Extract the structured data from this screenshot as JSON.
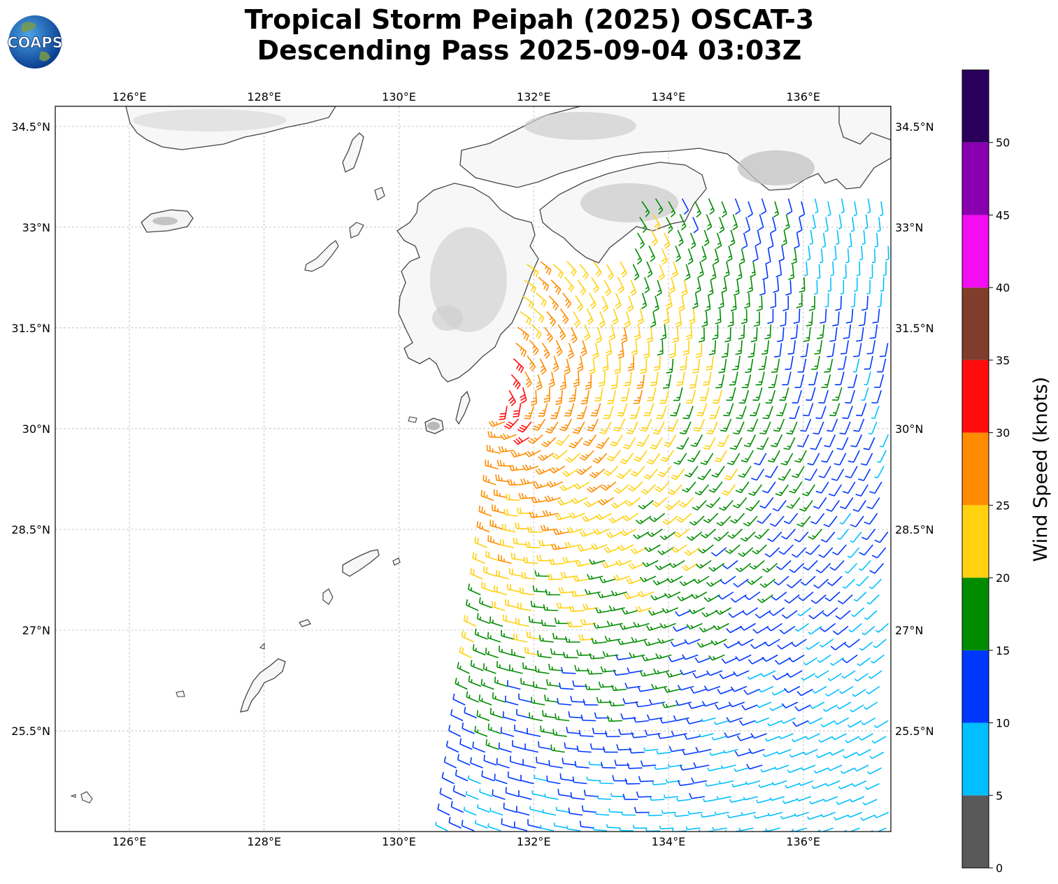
{
  "title": {
    "line1": "Tropical Storm Peipah (2025) OSCAT-3",
    "line2": "Descending Pass 2025-09-04 03:03Z"
  },
  "logo": {
    "text": "COAPS",
    "icon": "globe-icon"
  },
  "map": {
    "lon_range": [
      124.9,
      137.3
    ],
    "lat_range": [
      24.0,
      34.8
    ],
    "lon_ticks": [
      {
        "value": 126,
        "label": "126°E"
      },
      {
        "value": 128,
        "label": "128°E"
      },
      {
        "value": 130,
        "label": "130°E"
      },
      {
        "value": 132,
        "label": "132°E"
      },
      {
        "value": 134,
        "label": "134°E"
      },
      {
        "value": 136,
        "label": "136°E"
      }
    ],
    "lat_ticks": [
      {
        "value": 25.5,
        "label": "25.5°N"
      },
      {
        "value": 27,
        "label": "27°N"
      },
      {
        "value": 28.5,
        "label": "28.5°N"
      },
      {
        "value": 30,
        "label": "30°N"
      },
      {
        "value": 31.5,
        "label": "31.5°N"
      },
      {
        "value": 33,
        "label": "33°N"
      },
      {
        "value": 34.5,
        "label": "34.5°N"
      }
    ],
    "grid": true,
    "land_colors": {
      "coast": "#444444",
      "terrain_shade": "#c8c8c8"
    },
    "barb_swath": {
      "type": "wind barbs",
      "approx_center": [
        131.4,
        30.3
      ]
    }
  },
  "colorbar": {
    "label": "Wind Speed (knots)",
    "ticks": [
      "0",
      "5",
      "10",
      "15",
      "20",
      "25",
      "30",
      "35",
      "40",
      "45",
      "50"
    ],
    "bins": [
      {
        "from": 0,
        "to": 5,
        "color": "#595959"
      },
      {
        "from": 5,
        "to": 10,
        "color": "#00bfff"
      },
      {
        "from": 10,
        "to": 15,
        "color": "#0037ff"
      },
      {
        "from": 15,
        "to": 20,
        "color": "#008c00"
      },
      {
        "from": 20,
        "to": 25,
        "color": "#ffd10f"
      },
      {
        "from": 25,
        "to": 30,
        "color": "#ff8c00"
      },
      {
        "from": 30,
        "to": 35,
        "color": "#ff0d0d"
      },
      {
        "from": 35,
        "to": 40,
        "color": "#803d2b"
      },
      {
        "from": 40,
        "to": 45,
        "color": "#f20df2"
      },
      {
        "from": 45,
        "to": 50,
        "color": "#8a00b0"
      },
      {
        "from": 50,
        "to": 55,
        "color": "#2b005c"
      }
    ]
  }
}
